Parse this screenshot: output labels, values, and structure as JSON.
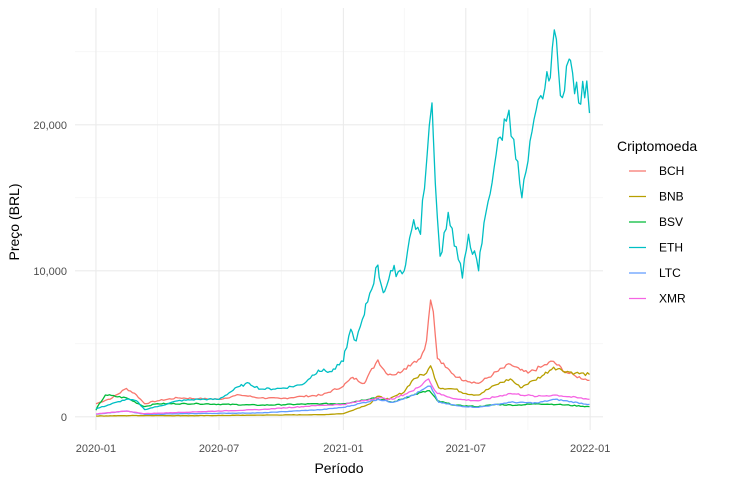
{
  "chart_data": {
    "type": "line",
    "xlabel": "Período",
    "ylabel": "Preço (BRL)",
    "xlim": [
      "2019-12-01",
      "2022-01-20"
    ],
    "ylim": [
      -900,
      28000
    ],
    "x_ticks": [
      "2020-01-01",
      "2020-07-01",
      "2021-01-01",
      "2021-07-01",
      "2022-01-01"
    ],
    "x_tick_labels": [
      "2020-01",
      "2020-07",
      "2021-01",
      "2021-07",
      "2022-01"
    ],
    "y_ticks": [
      0,
      10000,
      20000
    ],
    "y_tick_labels": [
      "0",
      "10,000",
      "20,000"
    ],
    "grid": true,
    "legend": {
      "title": "Criptomoeda",
      "position": "right"
    },
    "series": [
      {
        "name": "BCH",
        "color": "#F8766D",
        "points": [
          [
            "2020-01-01",
            900
          ],
          [
            "2020-01-25",
            1300
          ],
          [
            "2020-02-15",
            1950
          ],
          [
            "2020-03-01",
            1500
          ],
          [
            "2020-03-13",
            900
          ],
          [
            "2020-04-01",
            1100
          ],
          [
            "2020-05-01",
            1300
          ],
          [
            "2020-06-01",
            1250
          ],
          [
            "2020-07-01",
            1200
          ],
          [
            "2020-08-01",
            1500
          ],
          [
            "2020-09-01",
            1300
          ],
          [
            "2020-10-01",
            1250
          ],
          [
            "2020-11-01",
            1400
          ],
          [
            "2020-12-01",
            1500
          ],
          [
            "2021-01-01",
            2100
          ],
          [
            "2021-01-15",
            2700
          ],
          [
            "2021-02-01",
            2300
          ],
          [
            "2021-02-21",
            3900
          ],
          [
            "2021-03-05",
            3000
          ],
          [
            "2021-03-20",
            2900
          ],
          [
            "2021-04-01",
            3300
          ],
          [
            "2021-04-16",
            3800
          ],
          [
            "2021-04-25",
            4000
          ],
          [
            "2021-05-04",
            5200
          ],
          [
            "2021-05-10",
            8000
          ],
          [
            "2021-05-14",
            7200
          ],
          [
            "2021-05-20",
            4000
          ],
          [
            "2021-06-01",
            3400
          ],
          [
            "2021-06-20",
            2700
          ],
          [
            "2021-07-01",
            2500
          ],
          [
            "2021-07-20",
            2300
          ],
          [
            "2021-08-10",
            2900
          ],
          [
            "2021-09-05",
            3600
          ],
          [
            "2021-09-20",
            3200
          ],
          [
            "2021-10-01",
            3000
          ],
          [
            "2021-10-20",
            3400
          ],
          [
            "2021-11-08",
            3800
          ],
          [
            "2021-11-25",
            3100
          ],
          [
            "2021-12-10",
            2800
          ],
          [
            "2021-12-31",
            2500
          ]
        ]
      },
      {
        "name": "BNB",
        "color": "#B79F00",
        "points": [
          [
            "2020-01-01",
            60
          ],
          [
            "2020-03-01",
            90
          ],
          [
            "2020-06-01",
            80
          ],
          [
            "2020-09-01",
            120
          ],
          [
            "2020-12-01",
            150
          ],
          [
            "2021-01-01",
            220
          ],
          [
            "2021-02-10",
            900
          ],
          [
            "2021-02-20",
            1400
          ],
          [
            "2021-03-10",
            1200
          ],
          [
            "2021-04-01",
            1700
          ],
          [
            "2021-04-15",
            2600
          ],
          [
            "2021-05-04",
            3000
          ],
          [
            "2021-05-10",
            3500
          ],
          [
            "2021-05-22",
            2000
          ],
          [
            "2021-06-15",
            1900
          ],
          [
            "2021-07-01",
            1600
          ],
          [
            "2021-07-20",
            1500
          ],
          [
            "2021-08-15",
            2200
          ],
          [
            "2021-09-05",
            2600
          ],
          [
            "2021-09-20",
            2000
          ],
          [
            "2021-10-10",
            2500
          ],
          [
            "2021-10-25",
            2900
          ],
          [
            "2021-11-08",
            3400
          ],
          [
            "2021-11-20",
            3200
          ],
          [
            "2021-12-10",
            3000
          ],
          [
            "2021-12-31",
            2900
          ]
        ]
      },
      {
        "name": "BSV",
        "color": "#00BA38",
        "points": [
          [
            "2020-01-01",
            450
          ],
          [
            "2020-01-15",
            1500
          ],
          [
            "2020-02-15",
            1300
          ],
          [
            "2020-03-13",
            700
          ],
          [
            "2020-04-01",
            900
          ],
          [
            "2020-06-01",
            900
          ],
          [
            "2020-09-01",
            800
          ],
          [
            "2020-12-01",
            900
          ],
          [
            "2021-01-01",
            900
          ],
          [
            "2021-02-15",
            1300
          ],
          [
            "2021-03-15",
            1000
          ],
          [
            "2021-04-15",
            1500
          ],
          [
            "2021-05-08",
            1800
          ],
          [
            "2021-05-20",
            1100
          ],
          [
            "2021-06-15",
            800
          ],
          [
            "2021-07-20",
            700
          ],
          [
            "2021-08-15",
            850
          ],
          [
            "2021-09-15",
            800
          ],
          [
            "2021-10-15",
            900
          ],
          [
            "2021-11-15",
            850
          ],
          [
            "2021-12-31",
            700
          ]
        ]
      },
      {
        "name": "ETH",
        "color": "#00BFC4",
        "points": [
          [
            "2020-01-01",
            550
          ],
          [
            "2020-02-15",
            1200
          ],
          [
            "2020-03-01",
            1100
          ],
          [
            "2020-03-13",
            500
          ],
          [
            "2020-04-01",
            700
          ],
          [
            "2020-05-01",
            1100
          ],
          [
            "2020-06-01",
            1200
          ],
          [
            "2020-07-01",
            1200
          ],
          [
            "2020-08-01",
            2100
          ],
          [
            "2020-08-15",
            2300
          ],
          [
            "2020-09-01",
            1900
          ],
          [
            "2020-10-01",
            1950
          ],
          [
            "2020-11-01",
            2200
          ],
          [
            "2020-11-25",
            3200
          ],
          [
            "2020-12-15",
            3100
          ],
          [
            "2021-01-01",
            3800
          ],
          [
            "2021-01-12",
            6000
          ],
          [
            "2021-01-20",
            5200
          ],
          [
            "2021-02-01",
            7000
          ],
          [
            "2021-02-21",
            10400
          ],
          [
            "2021-03-01",
            8500
          ],
          [
            "2021-03-15",
            10000
          ],
          [
            "2021-04-01",
            10000
          ],
          [
            "2021-04-15",
            13500
          ],
          [
            "2021-04-25",
            12500
          ],
          [
            "2021-05-05",
            18000
          ],
          [
            "2021-05-12",
            21500
          ],
          [
            "2021-05-17",
            16000
          ],
          [
            "2021-05-24",
            11000
          ],
          [
            "2021-06-05",
            14000
          ],
          [
            "2021-06-26",
            9500
          ],
          [
            "2021-07-05",
            12500
          ],
          [
            "2021-07-20",
            10000
          ],
          [
            "2021-07-31",
            14000
          ],
          [
            "2021-08-15",
            18000
          ],
          [
            "2021-09-03",
            21000
          ],
          [
            "2021-09-10",
            19000
          ],
          [
            "2021-09-22",
            15000
          ],
          [
            "2021-10-01",
            17500
          ],
          [
            "2021-10-20",
            22000
          ],
          [
            "2021-11-01",
            23000
          ],
          [
            "2021-11-09",
            26500
          ],
          [
            "2021-11-18",
            22000
          ],
          [
            "2021-12-01",
            24500
          ],
          [
            "2021-12-15",
            21500
          ],
          [
            "2021-12-27",
            23000
          ],
          [
            "2021-12-31",
            20800
          ]
        ]
      },
      {
        "name": "LTC",
        "color": "#619CFF",
        "points": [
          [
            "2020-01-01",
            180
          ],
          [
            "2020-02-15",
            400
          ],
          [
            "2020-03-13",
            170
          ],
          [
            "2020-06-01",
            230
          ],
          [
            "2020-09-01",
            270
          ],
          [
            "2020-12-01",
            500
          ],
          [
            "2021-01-01",
            650
          ],
          [
            "2021-02-21",
            1200
          ],
          [
            "2021-03-15",
            1000
          ],
          [
            "2021-04-15",
            1500
          ],
          [
            "2021-05-10",
            2100
          ],
          [
            "2021-05-22",
            1000
          ],
          [
            "2021-06-20",
            750
          ],
          [
            "2021-07-20",
            650
          ],
          [
            "2021-09-05",
            1000
          ],
          [
            "2021-10-15",
            950
          ],
          [
            "2021-11-10",
            1200
          ],
          [
            "2021-12-31",
            850
          ]
        ]
      },
      {
        "name": "XMR",
        "color": "#F564E3",
        "points": [
          [
            "2020-01-01",
            200
          ],
          [
            "2020-02-15",
            400
          ],
          [
            "2020-03-13",
            220
          ],
          [
            "2020-06-01",
            350
          ],
          [
            "2020-09-01",
            500
          ],
          [
            "2020-12-01",
            800
          ],
          [
            "2021-01-01",
            850
          ],
          [
            "2021-02-21",
            1300
          ],
          [
            "2021-03-15",
            1200
          ],
          [
            "2021-04-15",
            1800
          ],
          [
            "2021-05-07",
            2600
          ],
          [
            "2021-05-20",
            1600
          ],
          [
            "2021-06-20",
            1200
          ],
          [
            "2021-07-20",
            1100
          ],
          [
            "2021-09-05",
            1600
          ],
          [
            "2021-10-15",
            1400
          ],
          [
            "2021-11-10",
            1500
          ],
          [
            "2021-12-31",
            1200
          ]
        ]
      }
    ]
  }
}
